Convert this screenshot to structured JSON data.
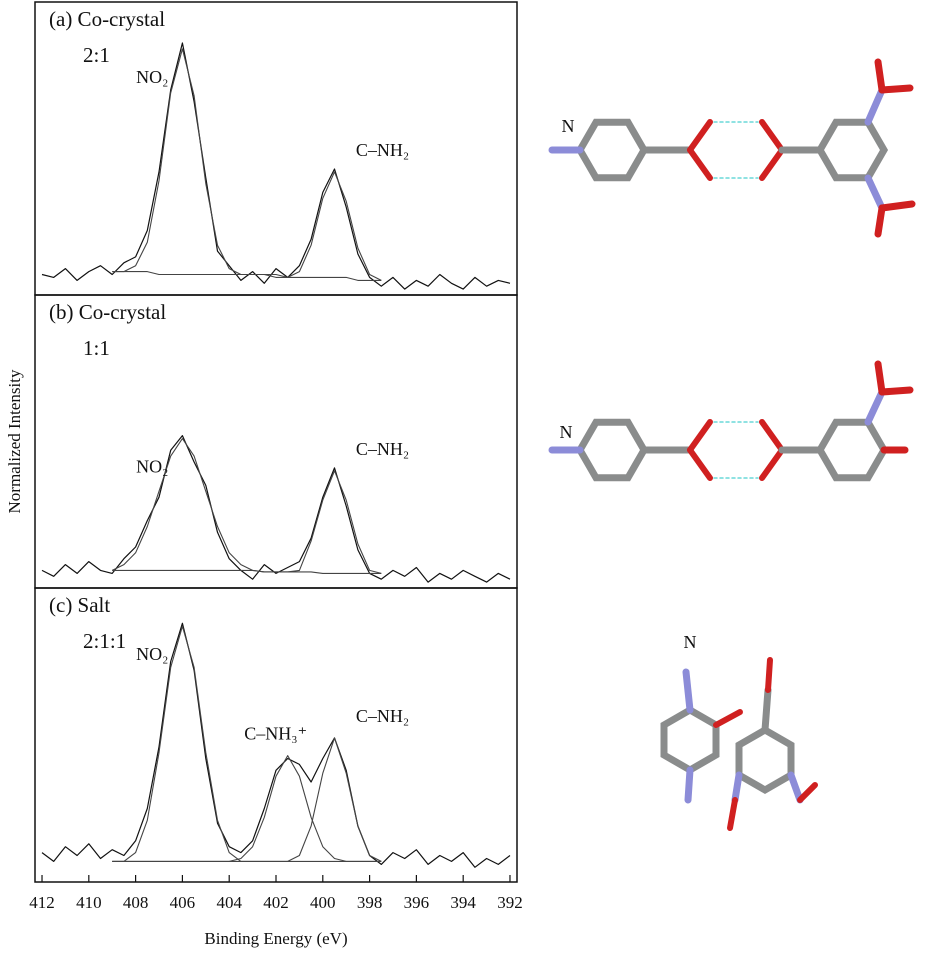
{
  "chart_data": [
    {
      "type": "line",
      "title": "(a) Co-crystal",
      "subtitle": "2:1",
      "structure_label": "N",
      "xlim": [
        412.3,
        391.7
      ],
      "ylim": [
        0,
        1
      ],
      "x": [
        412,
        411.5,
        411,
        410.5,
        410,
        409.5,
        409,
        408.5,
        408,
        407.5,
        407,
        406.5,
        406,
        405.5,
        405,
        404.5,
        404,
        403.5,
        403,
        402.5,
        402,
        401.5,
        401,
        400.5,
        400,
        399.5,
        399,
        398.5,
        398,
        397.5,
        397,
        396.5,
        396,
        395.5,
        395,
        394.5,
        394,
        393.5,
        393,
        392.5,
        392
      ],
      "series": [
        {
          "color": "#111",
          "values": [
            0.07,
            0.06,
            0.09,
            0.05,
            0.08,
            0.1,
            0.07,
            0.11,
            0.13,
            0.22,
            0.42,
            0.7,
            0.86,
            0.66,
            0.4,
            0.15,
            0.1,
            0.05,
            0.08,
            0.04,
            0.09,
            0.06,
            0.1,
            0.19,
            0.35,
            0.43,
            0.3,
            0.14,
            0.06,
            0.03,
            0.06,
            0.02,
            0.05,
            0.03,
            0.07,
            0.04,
            0.02,
            0.06,
            0.03,
            0.05,
            0.04
          ]
        },
        {
          "name": "NO₂",
          "color": "#444",
          "values": [
            null,
            null,
            null,
            null,
            null,
            null,
            0.08,
            0.08,
            0.1,
            0.18,
            0.39,
            0.69,
            0.84,
            0.68,
            0.38,
            0.17,
            0.09,
            0.07,
            0.07,
            0.07,
            0.07,
            0.06,
            0.06,
            0.06,
            0.06,
            0.06,
            0.06,
            0.05,
            0.05,
            0.05,
            null,
            null,
            null,
            null,
            null,
            null,
            null,
            null,
            null,
            null,
            null
          ]
        },
        {
          "name": "C–NH₂",
          "color": "#444",
          "values": [
            null,
            null,
            null,
            null,
            null,
            null,
            0.08,
            0.08,
            0.08,
            0.08,
            0.07,
            0.07,
            0.07,
            0.07,
            0.07,
            0.07,
            0.07,
            0.07,
            0.07,
            0.07,
            0.06,
            0.06,
            0.08,
            0.17,
            0.33,
            0.42,
            0.32,
            0.16,
            0.07,
            0.05,
            null,
            null,
            null,
            null,
            null,
            null,
            null,
            null,
            null,
            null,
            null
          ]
        }
      ]
    },
    {
      "type": "line",
      "title": "(b) Co-crystal",
      "subtitle": "1:1",
      "structure_label": "N",
      "ylabel": "Normalized Intensity",
      "xlim": [
        412.3,
        391.7
      ],
      "ylim": [
        0,
        1
      ],
      "x": [
        412,
        411.5,
        411,
        410.5,
        410,
        409.5,
        409,
        408.5,
        408,
        407.5,
        407,
        406.5,
        406,
        405.5,
        405,
        404.5,
        404,
        403.5,
        403,
        402.5,
        402,
        401.5,
        401,
        400.5,
        400,
        399.5,
        399,
        398.5,
        398,
        397.5,
        397,
        396.5,
        396,
        395.5,
        395,
        394.5,
        394,
        393.5,
        393,
        392.5,
        392
      ],
      "series": [
        {
          "color": "#111",
          "values": [
            0.06,
            0.04,
            0.08,
            0.05,
            0.09,
            0.06,
            0.05,
            0.1,
            0.14,
            0.23,
            0.31,
            0.47,
            0.52,
            0.43,
            0.35,
            0.19,
            0.1,
            0.06,
            0.03,
            0.08,
            0.05,
            0.07,
            0.09,
            0.17,
            0.31,
            0.41,
            0.28,
            0.13,
            0.05,
            0.03,
            0.06,
            0.04,
            0.07,
            0.02,
            0.05,
            0.03,
            0.06,
            0.04,
            0.02,
            0.05,
            0.03
          ]
        },
        {
          "name": "NO₂",
          "color": "#444",
          "values": [
            null,
            null,
            null,
            null,
            null,
            null,
            0.06,
            0.08,
            0.12,
            0.21,
            0.33,
            0.45,
            0.51,
            0.45,
            0.33,
            0.21,
            0.12,
            0.08,
            0.06,
            0.055,
            0.055,
            0.055,
            0.055,
            0.055,
            0.05,
            0.05,
            0.05,
            0.05,
            0.05,
            0.05,
            null,
            null,
            null,
            null,
            null,
            null,
            null,
            null,
            null,
            null,
            null
          ]
        },
        {
          "name": "C–NH₂",
          "color": "#444",
          "values": [
            null,
            null,
            null,
            null,
            null,
            null,
            0.06,
            0.06,
            0.06,
            0.06,
            0.06,
            0.06,
            0.06,
            0.06,
            0.06,
            0.06,
            0.06,
            0.06,
            0.06,
            0.055,
            0.055,
            0.055,
            0.06,
            0.16,
            0.3,
            0.4,
            0.3,
            0.15,
            0.06,
            0.05,
            null,
            null,
            null,
            null,
            null,
            null,
            null,
            null,
            null,
            null,
            null
          ]
        }
      ]
    },
    {
      "type": "line",
      "title": "(c) Salt",
      "subtitle": "2:1:1",
      "structure_label": "N",
      "xlabel": "Binding Energy (eV)",
      "xlim": [
        412.3,
        391.7
      ],
      "ylim": [
        0,
        1
      ],
      "xticks": [
        412,
        410,
        408,
        406,
        404,
        402,
        400,
        398,
        396,
        394,
        392
      ],
      "x": [
        412,
        411.5,
        411,
        410.5,
        410,
        409.5,
        409,
        408.5,
        408,
        407.5,
        407,
        406.5,
        406,
        405.5,
        405,
        404.5,
        404,
        403.5,
        403,
        402.5,
        402,
        401.5,
        401,
        400.5,
        400,
        399.5,
        399,
        398.5,
        398,
        397.5,
        397,
        396.5,
        396,
        395.5,
        395,
        394.5,
        394,
        393.5,
        393,
        392.5,
        392
      ],
      "series": [
        {
          "color": "#111",
          "values": [
            0.1,
            0.07,
            0.12,
            0.09,
            0.13,
            0.08,
            0.11,
            0.09,
            0.14,
            0.25,
            0.46,
            0.75,
            0.88,
            0.72,
            0.42,
            0.2,
            0.12,
            0.1,
            0.14,
            0.25,
            0.38,
            0.42,
            0.4,
            0.34,
            0.42,
            0.49,
            0.38,
            0.19,
            0.09,
            0.06,
            0.1,
            0.08,
            0.11,
            0.06,
            0.09,
            0.07,
            0.1,
            0.05,
            0.08,
            0.06,
            0.09
          ]
        },
        {
          "name": "NO₂",
          "color": "#444",
          "values": [
            null,
            null,
            null,
            null,
            null,
            null,
            0.07,
            0.07,
            0.1,
            0.21,
            0.44,
            0.73,
            0.87,
            0.73,
            0.44,
            0.21,
            0.1,
            0.07,
            0.07,
            0.07,
            0.07,
            0.07,
            0.07,
            0.07,
            0.07,
            0.07,
            0.07,
            0.07,
            0.07,
            0.07,
            null,
            null,
            null,
            null,
            null,
            null,
            null,
            null,
            null,
            null,
            null
          ]
        },
        {
          "name": "C–NH₃⁺",
          "color": "#444",
          "values": [
            null,
            null,
            null,
            null,
            null,
            null,
            0.07,
            0.07,
            0.07,
            0.07,
            0.07,
            0.07,
            0.07,
            0.07,
            0.07,
            0.07,
            0.07,
            0.08,
            0.12,
            0.22,
            0.36,
            0.43,
            0.36,
            0.22,
            0.12,
            0.08,
            0.07,
            0.07,
            0.07,
            0.07,
            null,
            null,
            null,
            null,
            null,
            null,
            null,
            null,
            null,
            null,
            null
          ]
        },
        {
          "name": "C–NH₂",
          "color": "#444",
          "values": [
            null,
            null,
            null,
            null,
            null,
            null,
            0.07,
            0.07,
            0.07,
            0.07,
            0.07,
            0.07,
            0.07,
            0.07,
            0.07,
            0.07,
            0.07,
            0.07,
            0.07,
            0.07,
            0.07,
            0.07,
            0.09,
            0.19,
            0.37,
            0.49,
            0.37,
            0.19,
            0.09,
            0.07,
            null,
            null,
            null,
            null,
            null,
            null,
            null,
            null,
            null,
            null,
            null
          ]
        }
      ]
    }
  ]
}
